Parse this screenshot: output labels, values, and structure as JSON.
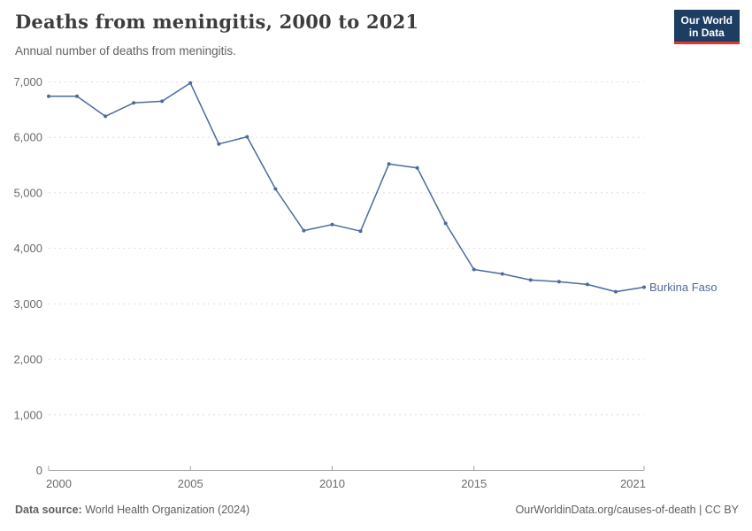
{
  "header": {
    "title": "Deaths from meningitis, 2000 to 2021",
    "subtitle": "Annual number of deaths from meningitis.",
    "logo": {
      "line1": "Our World",
      "line2": "in Data"
    }
  },
  "footer": {
    "source_label": "Data source:",
    "source_value": " World Health Organization (2024)",
    "credit": "OurWorldinData.org/causes-of-death | CC BY"
  },
  "colors": {
    "series_blue": "#4C6A9C",
    "grid": "#dedede",
    "axis": "#a0a0a0",
    "tick_label": "#6b6b6b",
    "logo_bg": "#1d3d63",
    "logo_accent": "#e0362c"
  },
  "chart_data": {
    "type": "line",
    "title": "Deaths from meningitis, 2000 to 2021",
    "subtitle": "Annual number of deaths from meningitis.",
    "x": [
      2000,
      2001,
      2002,
      2003,
      2004,
      2005,
      2006,
      2007,
      2008,
      2009,
      2010,
      2011,
      2012,
      2013,
      2014,
      2015,
      2016,
      2017,
      2018,
      2019,
      2020,
      2021
    ],
    "series": [
      {
        "name": "Burkina Faso",
        "color": "#4C6A9C",
        "values": [
          6740,
          6740,
          6380,
          6620,
          6650,
          6980,
          5880,
          6010,
          5070,
          4320,
          4430,
          4310,
          5520,
          5450,
          4450,
          3620,
          3540,
          3430,
          3400,
          3350,
          3220,
          3300
        ]
      }
    ],
    "xlabel": "",
    "ylabel": "",
    "ylim": [
      0,
      7000
    ],
    "yticks": [
      0,
      1000,
      2000,
      3000,
      4000,
      5000,
      6000,
      7000
    ],
    "xticks": [
      2000,
      2005,
      2010,
      2015,
      2021
    ],
    "grid": "horizontal-dashed",
    "legend_position": "end-of-line-label",
    "end_label": "Burkina Faso"
  }
}
